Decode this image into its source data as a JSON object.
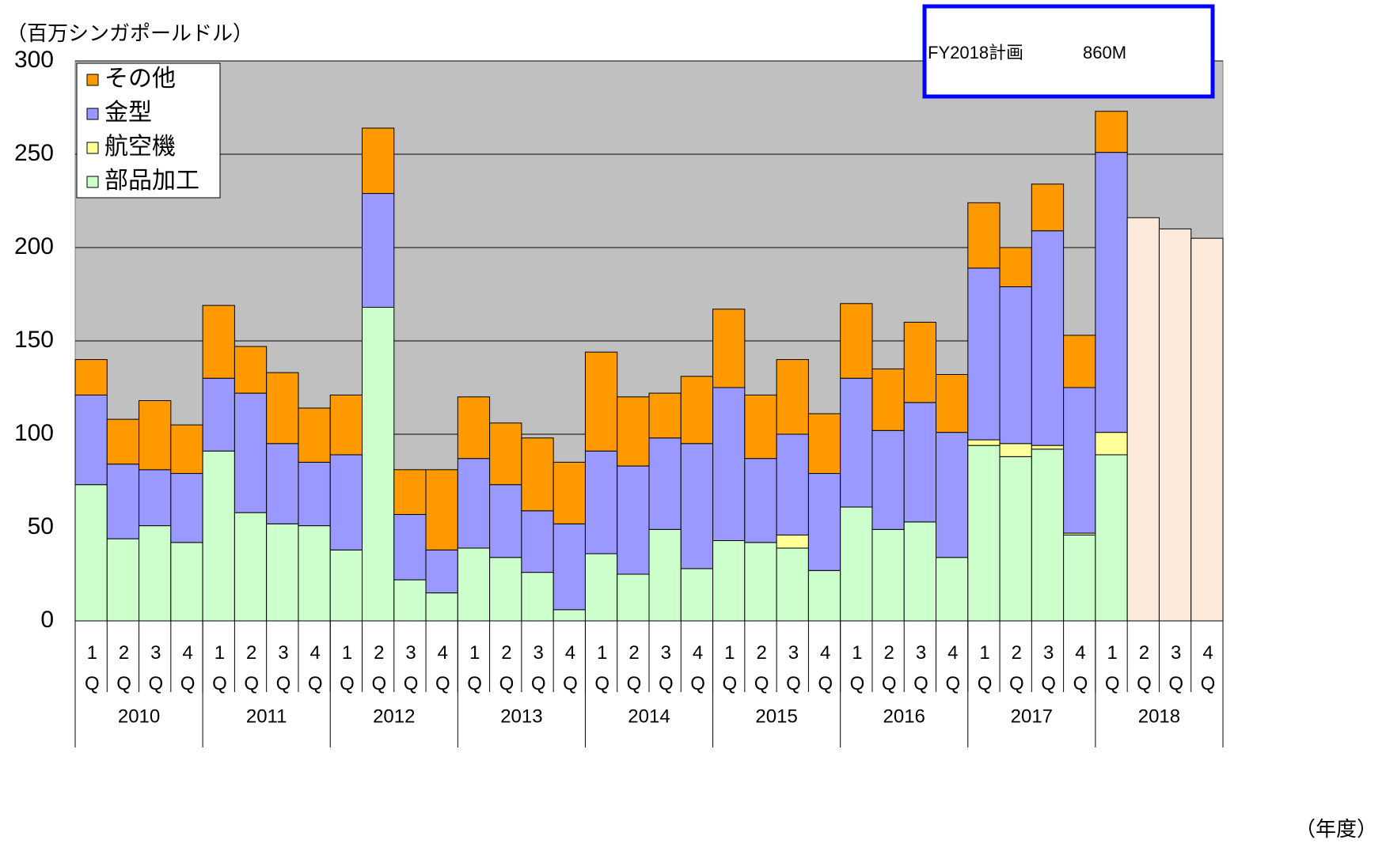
{
  "chart_data": {
    "type": "stacked_bar",
    "y_unit_label": "（百万シンガポールドル）",
    "x_unit_label": "（年度）",
    "note": "FY2018計画",
    "note_value": "860M",
    "categories": [
      "1Q",
      "2Q",
      "3Q",
      "4Q",
      "1Q",
      "2Q",
      "3Q",
      "4Q",
      "1Q",
      "2Q",
      "3Q",
      "4Q",
      "1Q",
      "2Q",
      "3Q",
      "4Q",
      "1Q",
      "2Q",
      "3Q",
      "4Q",
      "1Q",
      "2Q",
      "3Q",
      "4Q",
      "1Q",
      "2Q",
      "3Q",
      "4Q",
      "1Q",
      "2Q",
      "3Q",
      "4Q",
      "1Q",
      "2Q",
      "3Q",
      "4Q"
    ],
    "groups": [
      "2010",
      "2011",
      "2012",
      "2013",
      "2014",
      "2015",
      "2016",
      "2017",
      "2018"
    ],
    "series": [
      {
        "name": "部品加工",
        "color": "#ccffcc",
        "values": [
          73,
          44,
          51,
          42,
          91,
          58,
          52,
          51,
          38,
          168,
          22,
          15,
          39,
          34,
          26,
          6,
          36,
          25,
          49,
          28,
          43,
          42,
          39,
          27,
          61,
          49,
          53,
          34,
          94,
          88,
          92,
          46,
          89,
          null,
          null,
          null
        ]
      },
      {
        "name": "航空機",
        "color": "#ffff99",
        "values": [
          0,
          0,
          0,
          0,
          0,
          0,
          0,
          0,
          0,
          0,
          0,
          0,
          0,
          0,
          0,
          0,
          0,
          0,
          0,
          0,
          0,
          0,
          7,
          0,
          0,
          0,
          0,
          0,
          3,
          7,
          2,
          1,
          12,
          null,
          null,
          null
        ]
      },
      {
        "name": "金型",
        "color": "#9999ff",
        "values": [
          48,
          40,
          30,
          37,
          39,
          64,
          43,
          34,
          51,
          61,
          35,
          23,
          48,
          39,
          33,
          46,
          55,
          58,
          49,
          67,
          82,
          45,
          54,
          52,
          69,
          53,
          64,
          67,
          92,
          84,
          115,
          78,
          150,
          null,
          null,
          null
        ]
      },
      {
        "name": "その他",
        "color": "#ff9900",
        "values": [
          19,
          24,
          37,
          26,
          39,
          25,
          38,
          29,
          32,
          35,
          24,
          43,
          33,
          33,
          39,
          33,
          53,
          37,
          24,
          36,
          42,
          34,
          40,
          32,
          40,
          33,
          43,
          31,
          35,
          21,
          25,
          28,
          22,
          null,
          null,
          null
        ]
      }
    ],
    "forecast": {
      "color": "#fde9d9",
      "values": [
        null,
        null,
        null,
        null,
        null,
        null,
        null,
        null,
        null,
        null,
        null,
        null,
        null,
        null,
        null,
        null,
        null,
        null,
        null,
        null,
        null,
        null,
        null,
        null,
        null,
        null,
        null,
        null,
        null,
        null,
        null,
        null,
        null,
        216,
        210,
        205
      ]
    },
    "ylim": [
      0,
      300
    ],
    "yticks": [
      0,
      50,
      100,
      150,
      200,
      250,
      300
    ],
    "grid": true,
    "legend": "upper left",
    "plot_background": "#c0c0c0"
  }
}
